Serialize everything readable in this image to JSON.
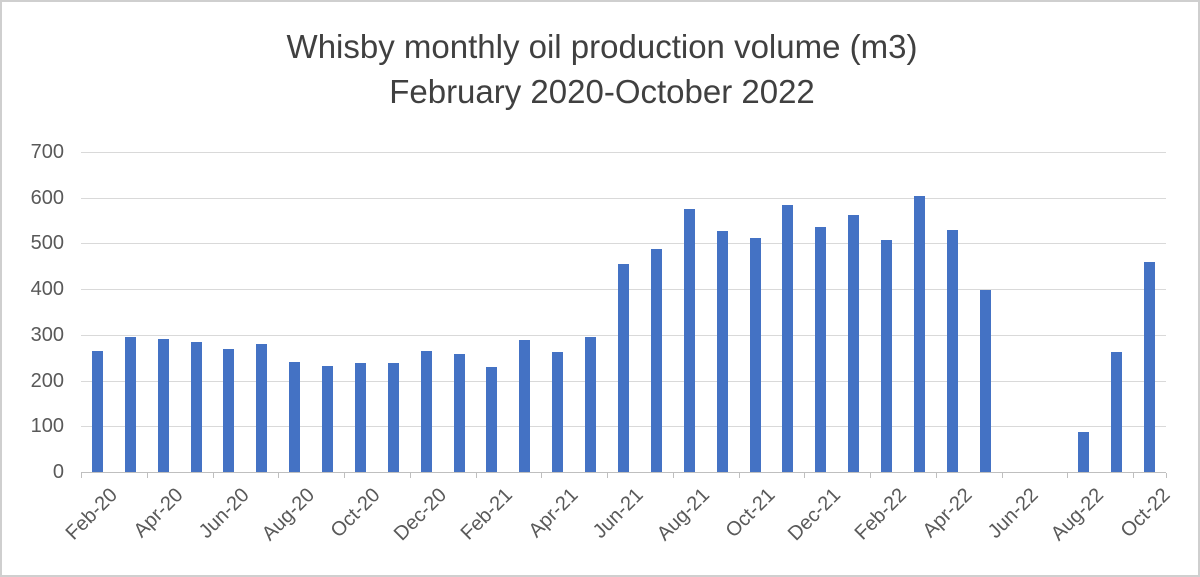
{
  "title": {
    "line1": "Whisby monthly oil production volume (m3)",
    "line2": "February 2020-October 2022"
  },
  "chart_data": {
    "type": "bar",
    "title": "Whisby monthly oil production volume (m3) February 2020-October 2022",
    "xlabel": "",
    "ylabel": "",
    "categories": [
      "Feb-20",
      "Mar-20",
      "Apr-20",
      "May-20",
      "Jun-20",
      "Jul-20",
      "Aug-20",
      "Sep-20",
      "Oct-20",
      "Nov-20",
      "Dec-20",
      "Jan-21",
      "Feb-21",
      "Mar-21",
      "Apr-21",
      "May-21",
      "Jun-21",
      "Jul-21",
      "Aug-21",
      "Sep-21",
      "Oct-21",
      "Nov-21",
      "Dec-21",
      "Jan-22",
      "Feb-22",
      "Mar-22",
      "Apr-22",
      "May-22",
      "Jun-22",
      "Jul-22",
      "Aug-22",
      "Sep-22",
      "Oct-22"
    ],
    "values": [
      265,
      295,
      290,
      285,
      270,
      280,
      240,
      232,
      238,
      238,
      265,
      258,
      230,
      288,
      263,
      296,
      455,
      487,
      575,
      527,
      512,
      585,
      535,
      562,
      507,
      603,
      530,
      398,
      0,
      0,
      88,
      262,
      460
    ],
    "ylim": [
      0,
      700
    ],
    "yticks": [
      0,
      100,
      200,
      300,
      400,
      500,
      600,
      700
    ],
    "x_tick_labels": [
      "Feb-20",
      "Apr-20",
      "Jun-20",
      "Aug-20",
      "Oct-20",
      "Dec-20",
      "Feb-21",
      "Apr-21",
      "Jun-21",
      "Aug-21",
      "Oct-21",
      "Dec-21",
      "Feb-22",
      "Apr-22",
      "Jun-22",
      "Aug-22",
      "Oct-22"
    ],
    "x_label_interval": 2,
    "grid": true,
    "legend": false,
    "bar_color": "#4472C4",
    "gridline_color": "#D9D9D9",
    "axis_color": "#BFBFBF",
    "tick_label_color": "#595959",
    "title_color": "#404040"
  }
}
